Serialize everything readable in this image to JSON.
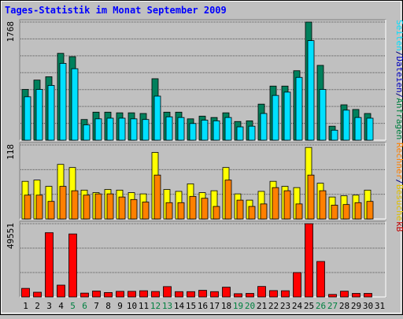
{
  "chart_data": {
    "type": "bar",
    "title": "Tages-Statistik im Monat September 2009",
    "categories": [
      "1",
      "2",
      "3",
      "4",
      "5",
      "6",
      "7",
      "8",
      "9",
      "10",
      "11",
      "12",
      "13",
      "14",
      "15",
      "16",
      "17",
      "18",
      "19",
      "20",
      "21",
      "22",
      "23",
      "24",
      "25",
      "26",
      "27",
      "28",
      "29",
      "30",
      "31"
    ],
    "weekend_days": [
      "5",
      "6",
      "12",
      "13",
      "19",
      "20",
      "26",
      "27"
    ],
    "panels": [
      {
        "id": "top",
        "y_max_label": "1768",
        "ylim": [
          0,
          1768
        ],
        "side_label_parts": [
          {
            "text": "Anfragen",
            "color": "#008040"
          },
          {
            "text": "/",
            "color": "#000080"
          },
          {
            "text": "Dateien",
            "color": "#0000c0"
          },
          {
            "text": "/",
            "color": "#000080"
          },
          {
            "text": "Seiten",
            "color": "#00e0ff"
          }
        ],
        "series": [
          {
            "name": "Anfragen",
            "color": "#00805c",
            "values": [
              760,
              900,
              950,
              1300,
              1250,
              310,
              420,
              420,
              410,
              410,
              400,
              920,
              420,
              420,
              320,
              360,
              340,
              410,
              280,
              290,
              540,
              810,
              810,
              1040,
              1768,
              1120,
              210,
              530,
              460,
              400,
              0
            ]
          },
          {
            "name": "Dateien",
            "color": "#00e0ff",
            "values": [
              650,
              760,
              820,
              1150,
              1070,
              230,
              320,
              330,
              330,
              320,
              310,
              660,
              350,
              340,
              250,
              300,
              290,
              340,
              200,
              210,
              400,
              670,
              720,
              940,
              1490,
              760,
              150,
              450,
              340,
              330,
              0
            ]
          }
        ]
      },
      {
        "id": "middle",
        "y_max_label": "118",
        "ylim": [
          0,
          118
        ],
        "side_label_parts": [
          {
            "text": "Besuche",
            "color": "#e0c000"
          },
          {
            "text": "/",
            "color": "#000080"
          },
          {
            "text": "Rechner",
            "color": "#ff8000"
          }
        ],
        "series": [
          {
            "name": "Besuche",
            "color": "#ffff00",
            "values": [
              60,
              62,
              52,
              87,
              82,
              46,
              42,
              47,
              46,
              42,
              40,
              106,
              47,
              44,
              56,
              42,
              45,
              82,
              40,
              30,
              44,
              60,
              52,
              50,
              114,
              57,
              35,
              37,
              38,
              46,
              0
            ]
          },
          {
            "name": "Rechner",
            "color": "#ff8000",
            "values": [
              38,
              38,
              28,
              52,
              45,
              38,
              40,
              40,
              35,
              31,
              27,
              70,
              26,
              26,
              36,
              33,
              20,
              62,
              30,
              20,
              24,
              50,
              45,
              24,
              70,
              45,
              22,
              23,
              26,
              28,
              0
            ]
          }
        ]
      },
      {
        "id": "bottom",
        "y_max_label": "49551",
        "ylim": [
          0,
          49551
        ],
        "side_label_parts": [
          {
            "text": "kB",
            "color": "#c00000"
          }
        ],
        "series": [
          {
            "name": "kB",
            "color": "#ff0000",
            "values": [
              5800,
              3200,
              43500,
              8000,
              42600,
              2600,
              4000,
              3000,
              3800,
              3800,
              4200,
              3700,
              7000,
              3600,
              3600,
              4500,
              3600,
              6600,
              2200,
              2400,
              7100,
              4300,
              4200,
              16500,
              49551,
              24000,
              1700,
              3900,
              2400,
              2400,
              0
            ]
          }
        ]
      }
    ]
  }
}
